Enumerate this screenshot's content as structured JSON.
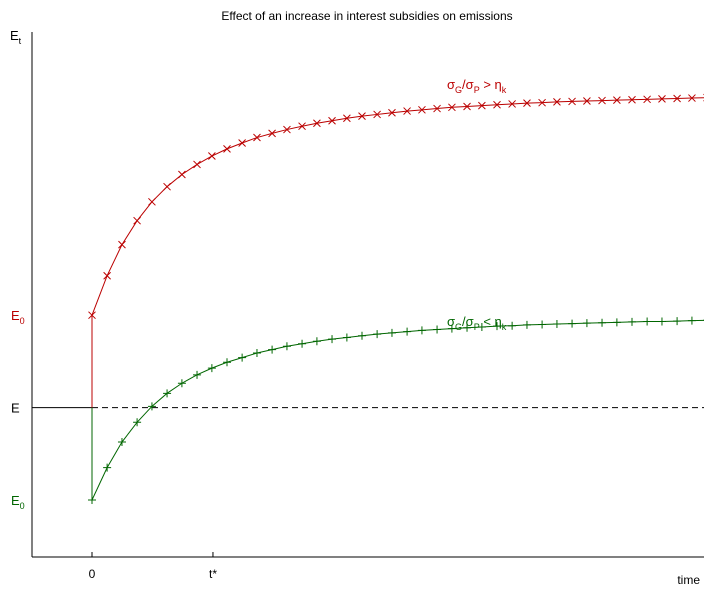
{
  "chart_data": {
    "type": "line",
    "title": "Effect of an increase in interest subsidies on emissions",
    "ylabel_main": "E",
    "ylabel_sub": "t",
    "xlabel": "time",
    "x_ticks": [
      "0",
      "t*"
    ],
    "y_ticks": [
      {
        "label": "E",
        "sub": "0",
        "color": "#bb0000",
        "value": 0.52
      },
      {
        "label": "E",
        "sub": "",
        "color": "#000000",
        "value": 0.3
      },
      {
        "label": "E",
        "sub": "0",
        "color": "#006600",
        "value": 0.08
      }
    ],
    "reference_line": {
      "value": 0.3,
      "style": "dashed"
    },
    "xlim": [
      -0.23,
      2.31
    ],
    "ylim": [
      -0.21,
      1.3
    ],
    "series": [
      {
        "label_parts": [
          "σ",
          "G",
          "/σ",
          "P",
          " > η",
          "k"
        ],
        "color": "#bb0000",
        "marker": "x",
        "jump_from": 0.3,
        "x": [
          0,
          0.056,
          0.111,
          0.167,
          0.222,
          0.278,
          0.333,
          0.389,
          0.444,
          0.5,
          0.556,
          0.611,
          0.667,
          0.722,
          0.778,
          0.833,
          0.889,
          0.944,
          1.0,
          1.056,
          1.111,
          1.167,
          1.222,
          1.278,
          1.333,
          1.389,
          1.444,
          1.5,
          1.556,
          1.611,
          1.667,
          1.722,
          1.778,
          1.833,
          1.889,
          1.944,
          2.0,
          2.056,
          2.111,
          2.167,
          2.222,
          2.278
        ],
        "y": [
          0.52,
          0.614,
          0.688,
          0.745,
          0.79,
          0.826,
          0.855,
          0.879,
          0.899,
          0.916,
          0.93,
          0.943,
          0.953,
          0.962,
          0.97,
          0.977,
          0.983,
          0.989,
          0.994,
          0.998,
          1.002,
          1.006,
          1.009,
          1.012,
          1.015,
          1.017,
          1.019,
          1.021,
          1.023,
          1.025,
          1.026,
          1.028,
          1.029,
          1.03,
          1.031,
          1.032,
          1.033,
          1.034,
          1.035,
          1.036,
          1.037,
          1.038
        ]
      },
      {
        "label_parts": [
          "σ",
          "G",
          "/σ",
          "P",
          " < η",
          "k"
        ],
        "color": "#006600",
        "marker": "+",
        "jump_from": 0.3,
        "x": [
          0,
          0.056,
          0.111,
          0.167,
          0.222,
          0.278,
          0.333,
          0.389,
          0.444,
          0.5,
          0.556,
          0.611,
          0.667,
          0.722,
          0.778,
          0.833,
          0.889,
          0.944,
          1.0,
          1.056,
          1.111,
          1.167,
          1.222,
          1.278,
          1.333,
          1.389,
          1.444,
          1.5,
          1.556,
          1.611,
          1.667,
          1.722,
          1.778,
          1.833,
          1.889,
          1.944,
          2.0,
          2.056,
          2.111,
          2.167,
          2.222,
          2.278
        ],
        "y": [
          0.08,
          0.157,
          0.218,
          0.265,
          0.303,
          0.334,
          0.358,
          0.378,
          0.394,
          0.408,
          0.419,
          0.43,
          0.438,
          0.446,
          0.452,
          0.458,
          0.463,
          0.467,
          0.471,
          0.475,
          0.478,
          0.481,
          0.484,
          0.486,
          0.488,
          0.49,
          0.492,
          0.494,
          0.495,
          0.497,
          0.498,
          0.499,
          0.5,
          0.501,
          0.502,
          0.503,
          0.504,
          0.505,
          0.505,
          0.506,
          0.507,
          0.508
        ]
      }
    ],
    "grid": false,
    "legend": "inline-labels"
  }
}
